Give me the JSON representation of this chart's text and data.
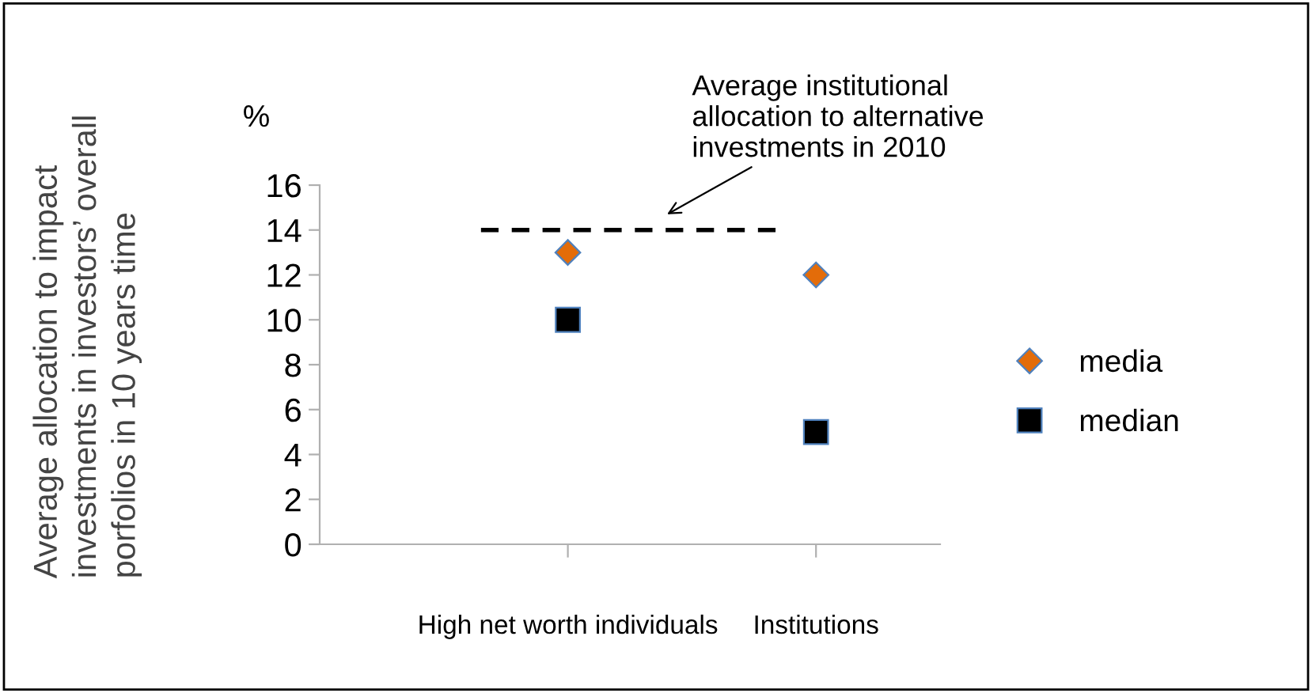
{
  "chart_data": {
    "type": "scatter",
    "ylabel": "Average allocation to impact\ninvestments in investors’ overall\nporfolios in 10 years time",
    "categories": [
      "High net worth individuals",
      "Institutions"
    ],
    "series": [
      {
        "name": "media",
        "color": "#e36c09",
        "marker": "diamond",
        "values": [
          13,
          12
        ]
      },
      {
        "name": "median",
        "color": "#000000",
        "marker": "square",
        "values": [
          10,
          5
        ]
      }
    ],
    "ylim": [
      0,
      16
    ],
    "yticks": [
      0,
      2,
      4,
      6,
      8,
      10,
      12,
      14,
      16
    ],
    "ref_lines": [
      {
        "axis": "y",
        "value": 14,
        "label": "Average institutional\nallocation to alternative\ninvestments in 2010",
        "color": "#000000",
        "line_style": "dashed"
      }
    ],
    "annotations": [
      "%"
    ],
    "grid": false,
    "legend": "right"
  }
}
